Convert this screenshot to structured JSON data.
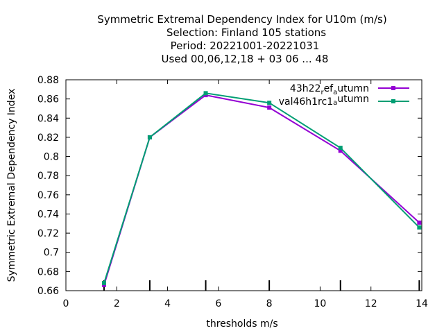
{
  "chart_data": {
    "type": "line",
    "title_lines": [
      "Symmetric Extremal Dependency Index  for U10m (m/s)",
      "Selection: Finland    105 stations",
      "Period: 20221001-20221031",
      "Used  00,06,12,18  + 03 06 ... 48"
    ],
    "xlabel": "thresholds m/s",
    "ylabel": "Symmetric Extremal Dependency Index",
    "xlim": [
      0,
      14
    ],
    "ylim": [
      0.66,
      0.88
    ],
    "x_ticks": [
      0,
      2,
      4,
      6,
      8,
      10,
      12,
      14
    ],
    "y_ticks": [
      0.66,
      0.68,
      0.7,
      0.72,
      0.74,
      0.76,
      0.78,
      0.8,
      0.82,
      0.84,
      0.86,
      0.88
    ],
    "x_tick_labels": [
      "0",
      "2",
      "4",
      "6",
      "8",
      "10",
      "12",
      "14"
    ],
    "y_tick_labels": [
      "0.66",
      "0.68",
      "0.7",
      "0.72",
      "0.74",
      "0.76",
      "0.78",
      "0.8",
      "0.82",
      "0.84",
      "0.86",
      "0.88"
    ],
    "threshold_marks": [
      1.5,
      3.3,
      5.5,
      8.0,
      10.8,
      13.9
    ],
    "grid": false,
    "legend_position": "top-right",
    "series": [
      {
        "name_main": "43h22",
        "name_sub1": "r",
        "name_mid": "ef",
        "name_sub2": "a",
        "name_end": "utumn",
        "color": "#9400d3",
        "x": [
          1.5,
          3.3,
          5.5,
          8.0,
          10.8,
          13.9
        ],
        "y": [
          0.666,
          0.82,
          0.864,
          0.851,
          0.806,
          0.731
        ]
      },
      {
        "name_main": "val46h1rc1",
        "name_sub1": "",
        "name_mid": "",
        "name_sub2": "a",
        "name_end": "utumn",
        "color": "#009e73",
        "x": [
          1.5,
          3.3,
          5.5,
          8.0,
          10.8,
          13.9
        ],
        "y": [
          0.668,
          0.82,
          0.866,
          0.856,
          0.809,
          0.726
        ]
      }
    ]
  }
}
